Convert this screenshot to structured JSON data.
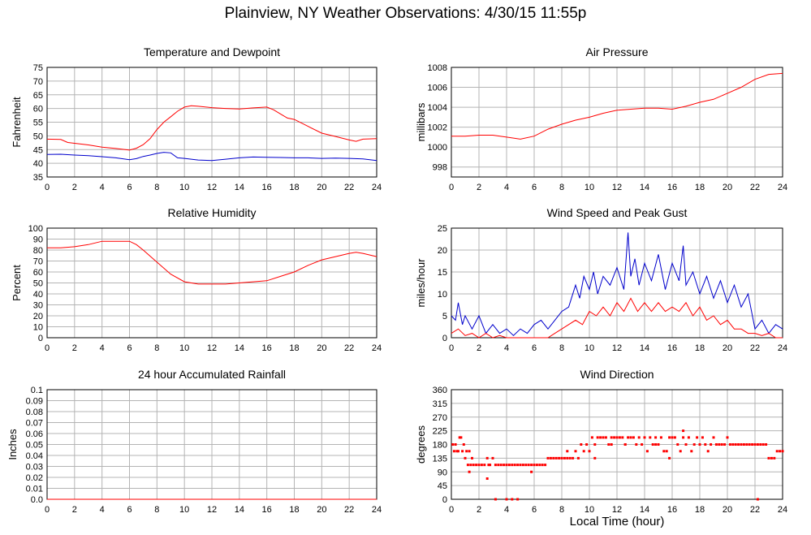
{
  "title": "Plainview, NY Weather Observations: 4/30/15 11:55p",
  "xlabel": "Local Time (hour)",
  "chart_data": [
    {
      "type": "line",
      "title": "Temperature and Dewpoint",
      "ylabel": "Fahrenheit",
      "xlim": [
        0,
        24
      ],
      "ylim": [
        35,
        75
      ],
      "yticks": [
        35,
        40,
        45,
        50,
        55,
        60,
        65,
        70,
        75
      ],
      "xticks": [
        0,
        2,
        4,
        6,
        8,
        10,
        12,
        14,
        16,
        18,
        20,
        22,
        24
      ],
      "grid": true,
      "series": [
        {
          "color": "#ff0000",
          "x": [
            0,
            1,
            1.5,
            2,
            3,
            4,
            5,
            6,
            6.5,
            7,
            7.5,
            8,
            8.5,
            9,
            9.5,
            10,
            10.5,
            11,
            12,
            13,
            14,
            15,
            16,
            16.5,
            17,
            17.5,
            18,
            19,
            20,
            21,
            22,
            22.5,
            23,
            24
          ],
          "values": [
            48.8,
            48.7,
            47.6,
            47.3,
            46.7,
            45.9,
            45.4,
            44.8,
            45.5,
            46.8,
            49,
            52.3,
            55,
            57,
            59,
            60.5,
            61,
            60.8,
            60.3,
            60,
            59.8,
            60.2,
            60.5,
            59.5,
            58,
            56.5,
            56,
            53.5,
            51,
            49.8,
            48.5,
            48,
            48.8,
            49
          ]
        },
        {
          "color": "#0000cc",
          "x": [
            0,
            1,
            2,
            3,
            4,
            5,
            6,
            6.5,
            7,
            7.5,
            8,
            8.5,
            9,
            9.5,
            10,
            11,
            12,
            13,
            14,
            15,
            16,
            17,
            18,
            19,
            20,
            21,
            22,
            23,
            24
          ],
          "values": [
            43.2,
            43.3,
            43,
            42.8,
            42.4,
            42,
            41.3,
            41.7,
            42.5,
            43,
            43.6,
            44,
            43.8,
            42,
            41.8,
            41.2,
            41,
            41.5,
            42,
            42.3,
            42.2,
            42.1,
            42,
            42,
            41.8,
            41.9,
            41.8,
            41.6,
            41
          ]
        }
      ]
    },
    {
      "type": "line",
      "title": "Air Pressure",
      "ylabel": "millibars",
      "xlim": [
        0,
        24
      ],
      "ylim": [
        997,
        1008
      ],
      "yticks": [
        998,
        1000,
        1002,
        1004,
        1006,
        1008
      ],
      "xticks": [
        0,
        2,
        4,
        6,
        8,
        10,
        12,
        14,
        16,
        18,
        20,
        22,
        24
      ],
      "grid": true,
      "series": [
        {
          "color": "#ff0000",
          "x": [
            0,
            1,
            2,
            3,
            4,
            5,
            6,
            7,
            8,
            9,
            10,
            11,
            12,
            13,
            14,
            15,
            16,
            17,
            18,
            19,
            20,
            21,
            22,
            23,
            24
          ],
          "values": [
            1001.1,
            1001.1,
            1001.2,
            1001.2,
            1001.0,
            1000.8,
            1001.1,
            1001.8,
            1002.3,
            1002.7,
            1003.0,
            1003.4,
            1003.7,
            1003.8,
            1003.9,
            1003.9,
            1003.8,
            1004.1,
            1004.5,
            1004.8,
            1005.4,
            1006.0,
            1006.8,
            1007.3,
            1007.4
          ]
        }
      ]
    },
    {
      "type": "line",
      "title": "Relative Humidity",
      "ylabel": "Percent",
      "xlim": [
        0,
        24
      ],
      "ylim": [
        0,
        100
      ],
      "yticks": [
        0,
        10,
        20,
        30,
        40,
        50,
        60,
        70,
        80,
        90,
        100
      ],
      "xticks": [
        0,
        2,
        4,
        6,
        8,
        10,
        12,
        14,
        16,
        18,
        20,
        22,
        24
      ],
      "grid": true,
      "series": [
        {
          "color": "#ff0000",
          "x": [
            0,
            1,
            2,
            3,
            4,
            5,
            6,
            6.5,
            7,
            8,
            9,
            10,
            11,
            12,
            13,
            14,
            15,
            16,
            17,
            18,
            19,
            20,
            21,
            22,
            22.5,
            23,
            24
          ],
          "values": [
            82,
            82,
            83,
            85,
            88,
            88,
            88,
            85,
            80,
            69,
            58,
            51,
            49,
            49,
            49,
            50,
            51,
            52,
            56,
            60,
            66,
            71,
            74,
            77,
            78,
            77,
            74
          ]
        }
      ]
    },
    {
      "type": "line",
      "title": "Wind Speed and Peak Gust",
      "ylabel": "miles/hour",
      "xlim": [
        0,
        24
      ],
      "ylim": [
        0,
        25
      ],
      "yticks": [
        0,
        5,
        10,
        15,
        20,
        25
      ],
      "xticks": [
        0,
        2,
        4,
        6,
        8,
        10,
        12,
        14,
        16,
        18,
        20,
        22,
        24
      ],
      "grid": true,
      "series": [
        {
          "color": "#0000cc",
          "x": [
            0,
            0.3,
            0.5,
            0.8,
            1,
            1.5,
            2,
            2.5,
            3,
            3.5,
            4,
            4.5,
            5,
            5.5,
            6,
            6.5,
            7,
            7.5,
            8,
            8.5,
            9,
            9.3,
            9.6,
            10,
            10.3,
            10.6,
            11,
            11.5,
            12,
            12.5,
            12.8,
            13,
            13.3,
            13.6,
            14,
            14.5,
            15,
            15.5,
            16,
            16.5,
            16.8,
            17,
            17.5,
            18,
            18.5,
            19,
            19.5,
            20,
            20.5,
            21,
            21.5,
            22,
            22.5,
            23,
            23.5,
            24
          ],
          "values": [
            5,
            4,
            8,
            3,
            5,
            2,
            5,
            1,
            3,
            1,
            2,
            0.5,
            2,
            1,
            3,
            4,
            2,
            4,
            6,
            7,
            12,
            9,
            14,
            11,
            15,
            10,
            14,
            12,
            16,
            11,
            24,
            14,
            18,
            12,
            17,
            13,
            19,
            11,
            17,
            13,
            21,
            12,
            15,
            10,
            14,
            9,
            13,
            8,
            12,
            7,
            10,
            2,
            4,
            1,
            3,
            2
          ]
        },
        {
          "color": "#ff0000",
          "x": [
            0,
            0.5,
            1,
            1.5,
            2,
            2.5,
            3,
            3.5,
            4,
            4.5,
            5,
            5.5,
            6,
            6.5,
            7,
            7.5,
            8,
            8.5,
            9,
            9.5,
            10,
            10.5,
            11,
            11.5,
            12,
            12.5,
            13,
            13.5,
            14,
            14.5,
            15,
            15.5,
            16,
            16.5,
            17,
            17.5,
            18,
            18.5,
            19,
            19.5,
            20,
            20.5,
            21,
            21.5,
            22,
            22.5,
            23,
            23.5,
            24
          ],
          "values": [
            1,
            2,
            0.5,
            1,
            0,
            1,
            0,
            0.5,
            0,
            0,
            0,
            0,
            0,
            0,
            0,
            1,
            2,
            3,
            4,
            3,
            6,
            5,
            7,
            5,
            8,
            6,
            9,
            6,
            8,
            6,
            8,
            6,
            7,
            6,
            8,
            5,
            7,
            4,
            5,
            3,
            4,
            2,
            2,
            1,
            1,
            0.5,
            1,
            0,
            0
          ]
        }
      ]
    },
    {
      "type": "line",
      "title": "24 hour Accumulated Rainfall",
      "ylabel": "Inches",
      "xlim": [
        0,
        24
      ],
      "ylim": [
        0,
        0.1
      ],
      "yticks": [
        0.0,
        0.01,
        0.02,
        0.03,
        0.04,
        0.05,
        0.06,
        0.07,
        0.08,
        0.09,
        0.1
      ],
      "ytick_labels": [
        "0.0",
        "0.01",
        "0.02",
        "0.03",
        "0.04",
        "0.05",
        "0.06",
        "0.07",
        "0.08",
        "0.09",
        "0.1"
      ],
      "xticks": [
        0,
        2,
        4,
        6,
        8,
        10,
        12,
        14,
        16,
        18,
        20,
        22,
        24
      ],
      "grid": true,
      "series": [
        {
          "color": "#ff0000",
          "x": [
            0,
            24
          ],
          "values": [
            0,
            0
          ]
        }
      ]
    },
    {
      "type": "scatter",
      "title": "Wind Direction",
      "ylabel": "degrees",
      "xlim": [
        0,
        24
      ],
      "ylim": [
        0,
        360
      ],
      "yticks": [
        0,
        45,
        90,
        135,
        180,
        225,
        270,
        315,
        360
      ],
      "xticks": [
        0,
        2,
        4,
        6,
        8,
        10,
        12,
        14,
        16,
        18,
        20,
        22,
        24
      ],
      "grid": true,
      "series": [
        {
          "color": "#ff0000",
          "x": [
            0.1,
            0.2,
            0.3,
            0.4,
            0.5,
            0.6,
            0.7,
            0.8,
            0.9,
            1.0,
            1.1,
            1.2,
            1.3,
            1.4,
            1.5,
            1.6,
            1.8,
            2.0,
            2.2,
            2.4,
            2.6,
            2.7,
            2.8,
            3.0,
            3.2,
            3.4,
            3.6,
            3.8,
            4.0,
            4.2,
            4.4,
            4.6,
            4.8,
            5.0,
            5.2,
            5.4,
            5.6,
            5.8,
            6.0,
            6.2,
            6.4,
            6.6,
            6.8,
            7.0,
            7.2,
            7.4,
            7.6,
            7.8,
            8.0,
            8.2,
            8.4,
            8.6,
            8.8,
            9.0,
            9.2,
            9.4,
            9.6,
            9.8,
            10.0,
            10.2,
            10.4,
            10.6,
            10.8,
            11.0,
            11.2,
            11.4,
            11.6,
            11.8,
            12.0,
            12.2,
            12.4,
            12.6,
            12.8,
            13.0,
            13.2,
            13.4,
            13.6,
            13.8,
            14.0,
            14.2,
            14.4,
            14.6,
            14.8,
            15.0,
            15.2,
            15.4,
            15.6,
            15.8,
            16.0,
            16.2,
            16.4,
            16.6,
            16.8,
            17.0,
            17.2,
            17.4,
            17.6,
            17.8,
            18.0,
            18.2,
            18.4,
            18.6,
            18.8,
            19.0,
            19.2,
            19.4,
            19.6,
            19.8,
            20.0,
            20.2,
            20.4,
            20.6,
            20.8,
            21.0,
            21.2,
            21.4,
            21.6,
            21.8,
            22.0,
            22.2,
            22.4,
            22.6,
            22.8,
            23.0,
            23.2,
            23.4,
            23.6,
            23.8,
            24.0,
            3.2,
            4.0,
            4.4,
            4.8,
            2.6,
            16.8,
            15.8,
            22.2,
            1.3,
            5.8,
            10.4,
            11.6,
            8.4,
            12.6,
            14.8
          ],
          "values": [
            180,
            158,
            180,
            158,
            158,
            203,
            203,
            158,
            180,
            135,
            158,
            113,
            158,
            113,
            135,
            113,
            113,
            113,
            113,
            113,
            135,
            113,
            113,
            135,
            113,
            113,
            113,
            113,
            113,
            113,
            113,
            113,
            113,
            113,
            113,
            113,
            113,
            113,
            113,
            113,
            113,
            113,
            113,
            135,
            135,
            135,
            135,
            135,
            135,
            135,
            135,
            135,
            135,
            158,
            135,
            180,
            158,
            180,
            158,
            203,
            180,
            203,
            203,
            203,
            203,
            180,
            203,
            203,
            203,
            203,
            203,
            180,
            203,
            203,
            203,
            180,
            203,
            180,
            203,
            158,
            203,
            180,
            203,
            180,
            203,
            158,
            158,
            203,
            203,
            203,
            180,
            158,
            203,
            180,
            203,
            158,
            180,
            203,
            180,
            203,
            180,
            158,
            180,
            203,
            180,
            180,
            180,
            180,
            203,
            180,
            180,
            180,
            180,
            180,
            180,
            180,
            180,
            180,
            180,
            180,
            180,
            180,
            180,
            135,
            135,
            135,
            158,
            158,
            158,
            0,
            0,
            0,
            0,
            68,
            225,
            135,
            0,
            90,
            90,
            135,
            180,
            158,
            180,
            180
          ]
        }
      ]
    }
  ]
}
